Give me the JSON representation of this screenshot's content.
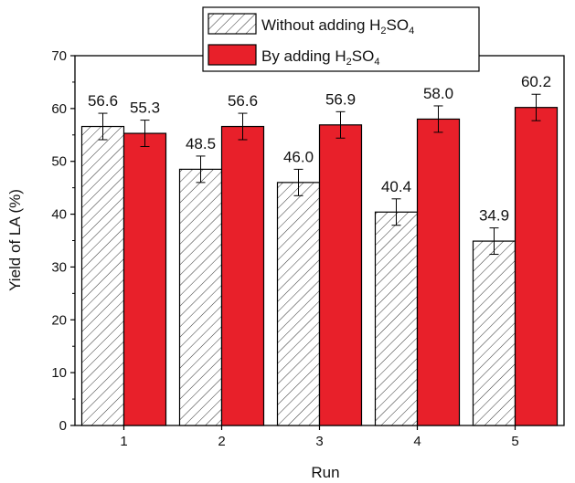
{
  "chart_data": {
    "type": "bar",
    "categories": [
      "1",
      "2",
      "3",
      "4",
      "5"
    ],
    "series": [
      {
        "name_parts": [
          "Without adding H",
          "2",
          "SO",
          "4"
        ],
        "values": [
          56.6,
          48.5,
          46.0,
          40.4,
          34.9
        ],
        "errors": [
          2.5,
          2.5,
          2.5,
          2.5,
          2.5
        ],
        "labels": [
          "56.6",
          "48.5",
          "46.0",
          "40.4",
          "34.9"
        ],
        "fill": "hatch",
        "color": "#ffffff",
        "stroke": "#000000"
      },
      {
        "name_parts": [
          "By adding H",
          "2",
          "SO",
          "4"
        ],
        "values": [
          55.3,
          56.6,
          56.9,
          58.0,
          60.2
        ],
        "errors": [
          2.5,
          2.5,
          2.5,
          2.5,
          2.5
        ],
        "labels": [
          "55.3",
          "56.6",
          "56.9",
          "58.0",
          "60.2"
        ],
        "fill": "solid",
        "color": "#e8202a",
        "stroke": "#000000"
      }
    ],
    "xlabel": "Run",
    "ylabel": "Yield of LA (%)",
    "ylim": [
      0,
      70
    ],
    "yticks": [
      "0",
      "10",
      "20",
      "30",
      "40",
      "50",
      "60",
      "70"
    ],
    "grid": false,
    "legend_position": "top-center"
  }
}
